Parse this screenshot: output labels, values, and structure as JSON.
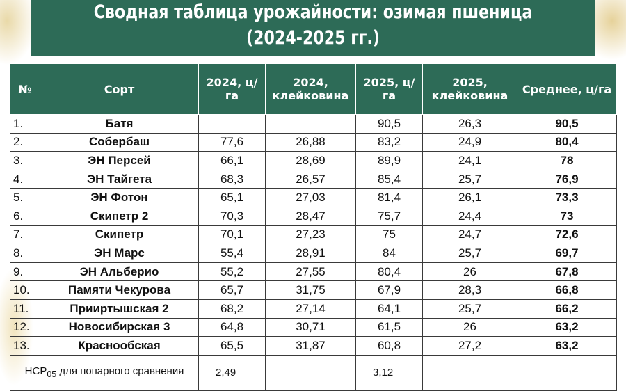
{
  "title": {
    "line1": "Сводная таблица урожайности: озимая пшеница",
    "line2": "(2024-2025 гг.)"
  },
  "table": {
    "headers": {
      "num": "№",
      "variety": "Сорт",
      "y2024": "2024, ц/га",
      "g2024_line1": "2024,",
      "g2024_line2": "клейковина",
      "y2025": "2025, ц/га",
      "g2025_line1": "2025,",
      "g2025_line2": "клейковина",
      "avg": "Среднее, ц/га"
    },
    "rows": [
      {
        "num": "1.",
        "name": "Батя",
        "y2024": "",
        "g2024": "",
        "y2025": "90,5",
        "g2025": "26,3",
        "avg": "90,5"
      },
      {
        "num": "2.",
        "name": "Собербаш",
        "y2024": "77,6",
        "g2024": "26,88",
        "y2025": "83,2",
        "g2025": "24,9",
        "avg": "80,4"
      },
      {
        "num": "3.",
        "name": "ЭН Персей",
        "y2024": "66,1",
        "g2024": "28,69",
        "y2025": "89,9",
        "g2025": "24,1",
        "avg": "78"
      },
      {
        "num": "4.",
        "name": "ЭН Тайгета",
        "y2024": "68,3",
        "g2024": "26,57",
        "y2025": "85,4",
        "g2025": "25,7",
        "avg": "76,9"
      },
      {
        "num": "5.",
        "name": "ЭН Фотон",
        "y2024": "65,1",
        "g2024": "27,03",
        "y2025": "81,4",
        "g2025": "26,1",
        "avg": "73,3"
      },
      {
        "num": "6.",
        "name": "Скипетр 2",
        "y2024": "70,3",
        "g2024": "28,47",
        "y2025": "75,7",
        "g2025": "24,4",
        "avg": "73"
      },
      {
        "num": "7.",
        "name": "Скипетр",
        "y2024": "70,1",
        "g2024": "27,23",
        "y2025": "75",
        "g2025": "24,7",
        "avg": "72,6"
      },
      {
        "num": "8.",
        "name": "ЭН Марс",
        "y2024": "55,4",
        "g2024": "28,91",
        "y2025": "84",
        "g2025": "25,7",
        "avg": "69,7"
      },
      {
        "num": "9.",
        "name": "ЭН Альберио",
        "y2024": "55,2",
        "g2024": "27,55",
        "y2025": "80,4",
        "g2025": "26",
        "avg": "67,8"
      },
      {
        "num": "10.",
        "name": "Памяти Чекурова",
        "y2024": "65,7",
        "g2024": "31,75",
        "y2025": "67,9",
        "g2025": "28,3",
        "avg": "66,8"
      },
      {
        "num": "11.",
        "name": "Прииртышская 2",
        "y2024": "68,2",
        "g2024": "27,14",
        "y2025": "64,1",
        "g2025": "25,7",
        "avg": "66,2"
      },
      {
        "num": "12.",
        "name": "Новосибирская 3",
        "y2024": "64,8",
        "g2024": "30,71",
        "y2025": "61,5",
        "g2025": "26",
        "avg": "63,2"
      },
      {
        "num": "13.",
        "name": "Краснообская",
        "y2024": "65,5",
        "g2024": "31,87",
        "y2025": "60,8",
        "g2025": "27,2",
        "avg": "63,2"
      }
    ],
    "ncp": {
      "label_prefix": "НСР",
      "label_sub": "05",
      "label_rest": " для попарного сравнения",
      "y2024": "2,49",
      "y2025": "3,12"
    }
  }
}
